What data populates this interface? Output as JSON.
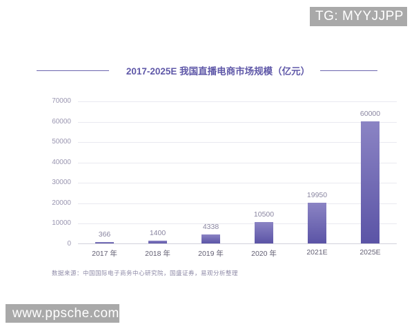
{
  "overlays": {
    "tg_badge": "TG: MYYJJPP",
    "site_badge": "www.ppsche.com",
    "badge_bg": "#a9a9a9",
    "badge_text_color": "#ffffff"
  },
  "header": {
    "title": "2017-2025E 我国直播电商市场规模（亿元）",
    "title_color": "#5f58a8"
  },
  "footer": {
    "source_note": "数据来源：中国国际电子商务中心研究院，国盛证券，易观分析整理"
  },
  "chart_data": {
    "type": "bar",
    "title": "2017-2025E 我国直播电商市场规模（亿元）",
    "categories": [
      "2017 年",
      "2018 年",
      "2019 年",
      "2020 年",
      "2021E",
      "2025E"
    ],
    "values": [
      366,
      1400,
      4338,
      10500,
      19950,
      60000
    ],
    "xlabel": "",
    "ylabel": "",
    "ylim": [
      0,
      70000
    ],
    "yticks": [
      0,
      10000,
      20000,
      30000,
      40000,
      50000,
      60000,
      70000
    ],
    "grid": true,
    "legend": false,
    "bar_color_top": "#8b84c4",
    "bar_color_bottom": "#5b54a6",
    "value_label_color": "#8985a0",
    "axis_tick_color": "#9995b0",
    "category_label_color": "#615e72",
    "gridline_color": "#e9e9f0",
    "baseline_color": "#d2d1db"
  }
}
